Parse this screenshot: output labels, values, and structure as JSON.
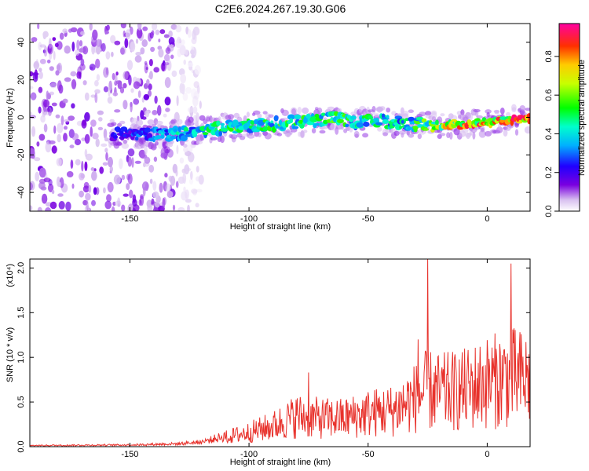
{
  "title": "C2E6.2024.267.19.30.G06",
  "chart_data": [
    {
      "type": "heatmap",
      "xlabel": "Height of straight line (km)",
      "ylabel": "Frequency (Hz)",
      "xlim": [
        -192,
        18
      ],
      "ylim": [
        -50,
        50
      ],
      "x_ticks": [
        -150,
        -100,
        -50,
        0
      ],
      "y_ticks": [
        -40,
        -20,
        0,
        20,
        40
      ],
      "colorbar": {
        "label": "Normalized spectral amplitude",
        "range": [
          0,
          0.97
        ],
        "ticks": [
          "0.0",
          "0.2",
          "0.4",
          "0.6",
          "0.8"
        ],
        "tick_values": [
          0.0,
          0.2,
          0.4,
          0.6,
          0.8
        ]
      },
      "ridge": [
        {
          "x": -155,
          "y": -9,
          "amp": 0.25
        },
        {
          "x": -145,
          "y": -9,
          "amp": 0.3
        },
        {
          "x": -135,
          "y": -9,
          "amp": 0.4
        },
        {
          "x": -125,
          "y": -8,
          "amp": 0.45
        },
        {
          "x": -115,
          "y": -6,
          "amp": 0.5
        },
        {
          "x": -105,
          "y": -5,
          "amp": 0.55
        },
        {
          "x": -95,
          "y": -4,
          "amp": 0.5
        },
        {
          "x": -85,
          "y": -3,
          "amp": 0.55
        },
        {
          "x": -75,
          "y": -2,
          "amp": 0.5
        },
        {
          "x": -65,
          "y": 0,
          "amp": 0.55
        },
        {
          "x": -55,
          "y": -3,
          "amp": 0.5
        },
        {
          "x": -45,
          "y": -2,
          "amp": 0.5
        },
        {
          "x": -35,
          "y": -3,
          "amp": 0.45
        },
        {
          "x": -25,
          "y": -4,
          "amp": 0.6
        },
        {
          "x": -15,
          "y": -4,
          "amp": 0.75
        },
        {
          "x": -5,
          "y": -3,
          "amp": 0.85
        },
        {
          "x": 5,
          "y": -2,
          "amp": 0.8
        },
        {
          "x": 15,
          "y": -1,
          "amp": 0.9
        }
      ],
      "noise_region_x": [
        -192,
        -130
      ]
    },
    {
      "type": "line",
      "xlabel": "Height of straight line (km)",
      "ylabel": "SNR (10 * v/v)",
      "y_multiplier": "(x10⁴)",
      "xlim": [
        -192,
        18
      ],
      "ylim": [
        0,
        2.1
      ],
      "x_ticks": [
        -150,
        -100,
        -50,
        0
      ],
      "y_ticks": [
        "0.0",
        "0.5",
        "1.0",
        "1.5",
        "2.0"
      ],
      "y_tick_values": [
        0.0,
        0.5,
        1.0,
        1.5,
        2.0
      ],
      "envelope": [
        {
          "x": -192,
          "y": 0.02
        },
        {
          "x": -150,
          "y": 0.03
        },
        {
          "x": -130,
          "y": 0.05
        },
        {
          "x": -120,
          "y": 0.08
        },
        {
          "x": -110,
          "y": 0.18
        },
        {
          "x": -100,
          "y": 0.28
        },
        {
          "x": -90,
          "y": 0.4
        },
        {
          "x": -80,
          "y": 0.6
        },
        {
          "x": -70,
          "y": 0.55
        },
        {
          "x": -60,
          "y": 0.55
        },
        {
          "x": -50,
          "y": 0.65
        },
        {
          "x": -40,
          "y": 0.7
        },
        {
          "x": -30,
          "y": 0.95
        },
        {
          "x": -25,
          "y": 1.1
        },
        {
          "x": -20,
          "y": 1.05
        },
        {
          "x": -10,
          "y": 1.1
        },
        {
          "x": 0,
          "y": 1.25
        },
        {
          "x": 10,
          "y": 1.35
        },
        {
          "x": 18,
          "y": 1.3
        }
      ],
      "spikes": [
        {
          "x": -25,
          "y": 2.1
        },
        {
          "x": 10,
          "y": 2.05
        },
        {
          "x": -75,
          "y": 0.83
        },
        {
          "x": -29,
          "y": 1.2
        }
      ],
      "color": "#e8322c"
    }
  ]
}
